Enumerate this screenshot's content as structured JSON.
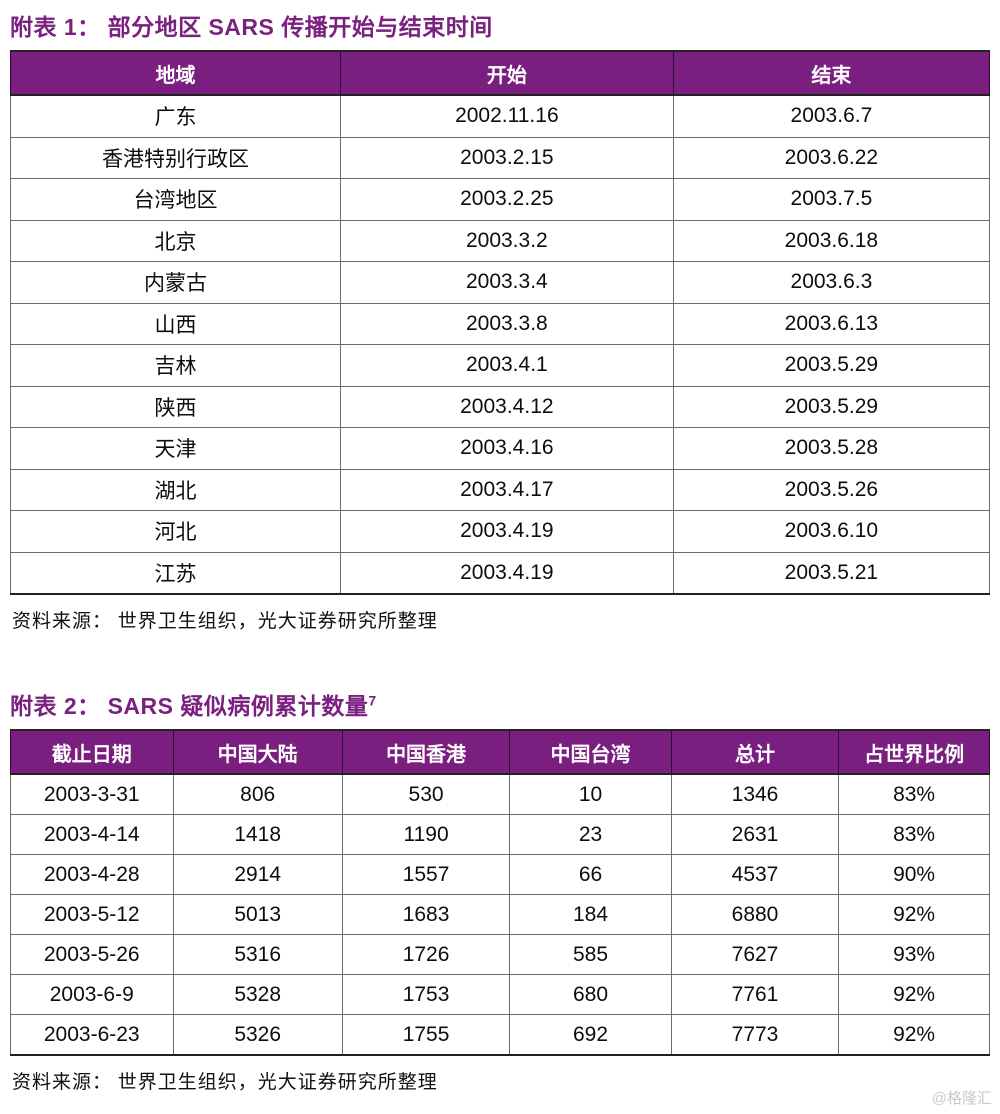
{
  "colors": {
    "accent_purple": "#7A1F7F",
    "title_purple": "#7A2180",
    "header_text": "#ffffff",
    "body_text": "#0d0d0d",
    "watermark_gray": "#c9c9c9"
  },
  "table1": {
    "title": "附表 1： 部分地区 SARS 传播开始与结束时间",
    "columns": [
      "地域",
      "开始",
      "结束"
    ],
    "rows": [
      [
        "广东",
        "2002.11.16",
        "2003.6.7"
      ],
      [
        "香港特别行政区",
        "2003.2.15",
        "2003.6.22"
      ],
      [
        "台湾地区",
        "2003.2.25",
        "2003.7.5"
      ],
      [
        "北京",
        "2003.3.2",
        "2003.6.18"
      ],
      [
        "内蒙古",
        "2003.3.4",
        "2003.6.3"
      ],
      [
        "山西",
        "2003.3.8",
        "2003.6.13"
      ],
      [
        "吉林",
        "2003.4.1",
        "2003.5.29"
      ],
      [
        "陕西",
        "2003.4.12",
        "2003.5.29"
      ],
      [
        "天津",
        "2003.4.16",
        "2003.5.28"
      ],
      [
        "湖北",
        "2003.4.17",
        "2003.5.26"
      ],
      [
        "河北",
        "2003.4.19",
        "2003.6.10"
      ],
      [
        "江苏",
        "2003.4.19",
        "2003.5.21"
      ]
    ],
    "source": "资料来源： 世界卫生组织，光大证券研究所整理"
  },
  "table2": {
    "title_prefix": "附表 2： SARS 疑似病例累计数量",
    "title_superscript": "7",
    "columns": [
      "截止日期",
      "中国大陆",
      "中国香港",
      "中国台湾",
      "总计",
      "占世界比例"
    ],
    "rows": [
      [
        "2003-3-31",
        "806",
        "530",
        "10",
        "1346",
        "83%"
      ],
      [
        "2003-4-14",
        "1418",
        "1190",
        "23",
        "2631",
        "83%"
      ],
      [
        "2003-4-28",
        "2914",
        "1557",
        "66",
        "4537",
        "90%"
      ],
      [
        "2003-5-12",
        "5013",
        "1683",
        "184",
        "6880",
        "92%"
      ],
      [
        "2003-5-26",
        "5316",
        "1726",
        "585",
        "7627",
        "93%"
      ],
      [
        "2003-6-9",
        "5328",
        "1753",
        "680",
        "7761",
        "92%"
      ],
      [
        "2003-6-23",
        "5326",
        "1755",
        "692",
        "7773",
        "92%"
      ]
    ],
    "source": "资料来源： 世界卫生组织，光大证券研究所整理"
  },
  "watermark": "@格隆汇"
}
